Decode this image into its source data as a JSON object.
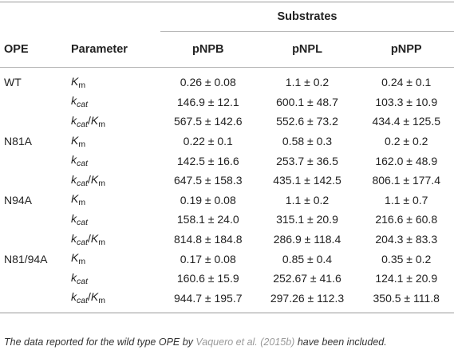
{
  "header": {
    "group_label": "Substrates",
    "ope_label": "OPE",
    "parameter_label": "Parameter",
    "substrates": [
      "pNPB",
      "pNPL",
      "pNPP"
    ]
  },
  "rows": [
    {
      "ope": "WT",
      "param": "Km",
      "values": [
        "0.26 ± 0.08",
        "1.1 ± 0.2",
        "0.24 ± 0.1"
      ]
    },
    {
      "ope": "",
      "param": "kcat",
      "values": [
        "146.9 ± 12.1",
        "600.1 ± 48.7",
        "103.3 ± 10.9"
      ]
    },
    {
      "ope": "",
      "param": "kcat/Km",
      "values": [
        "567.5 ± 142.6",
        "552.6 ± 73.2",
        "434.4 ± 125.5"
      ]
    },
    {
      "ope": "N81A",
      "param": "Km",
      "values": [
        "0.22 ± 0.1",
        "0.58 ± 0.3",
        "0.2 ± 0.2"
      ]
    },
    {
      "ope": "",
      "param": "kcat",
      "values": [
        "142.5 ± 16.6",
        "253.7 ± 36.5",
        "162.0 ± 48.9"
      ]
    },
    {
      "ope": "",
      "param": "kcat/Km",
      "values": [
        "647.5 ± 158.3",
        "435.1 ± 142.5",
        "806.1 ± 177.4"
      ]
    },
    {
      "ope": "N94A",
      "param": "Km",
      "values": [
        "0.19 ± 0.08",
        "1.1 ± 0.2",
        "1.1 ± 0.7"
      ]
    },
    {
      "ope": "",
      "param": "kcat",
      "values": [
        "158.1 ± 24.0",
        "315.1 ± 20.9",
        "216.6 ± 60.8"
      ]
    },
    {
      "ope": "",
      "param": "kcat/Km",
      "values": [
        "814.8 ± 184.8",
        "286.9 ± 118.4",
        "204.3 ± 83.3"
      ]
    },
    {
      "ope": "N81/94A",
      "param": "Km",
      "values": [
        "0.17 ± 0.08",
        "0.85 ± 0.4",
        "0.35 ± 0.2"
      ]
    },
    {
      "ope": "",
      "param": "kcat",
      "values": [
        "160.6 ± 15.9",
        "252.67 ± 41.6",
        "124.1 ± 20.9"
      ]
    },
    {
      "ope": "",
      "param": "kcat/Km",
      "values": [
        "944.7 ± 195.7",
        "297.26 ± 112.3",
        "350.5 ± 111.8"
      ]
    }
  ],
  "footnote": {
    "before": "The data reported for the wild type OPE by ",
    "link": "Vaquero et al. (2015b)",
    "after": " have been included."
  }
}
